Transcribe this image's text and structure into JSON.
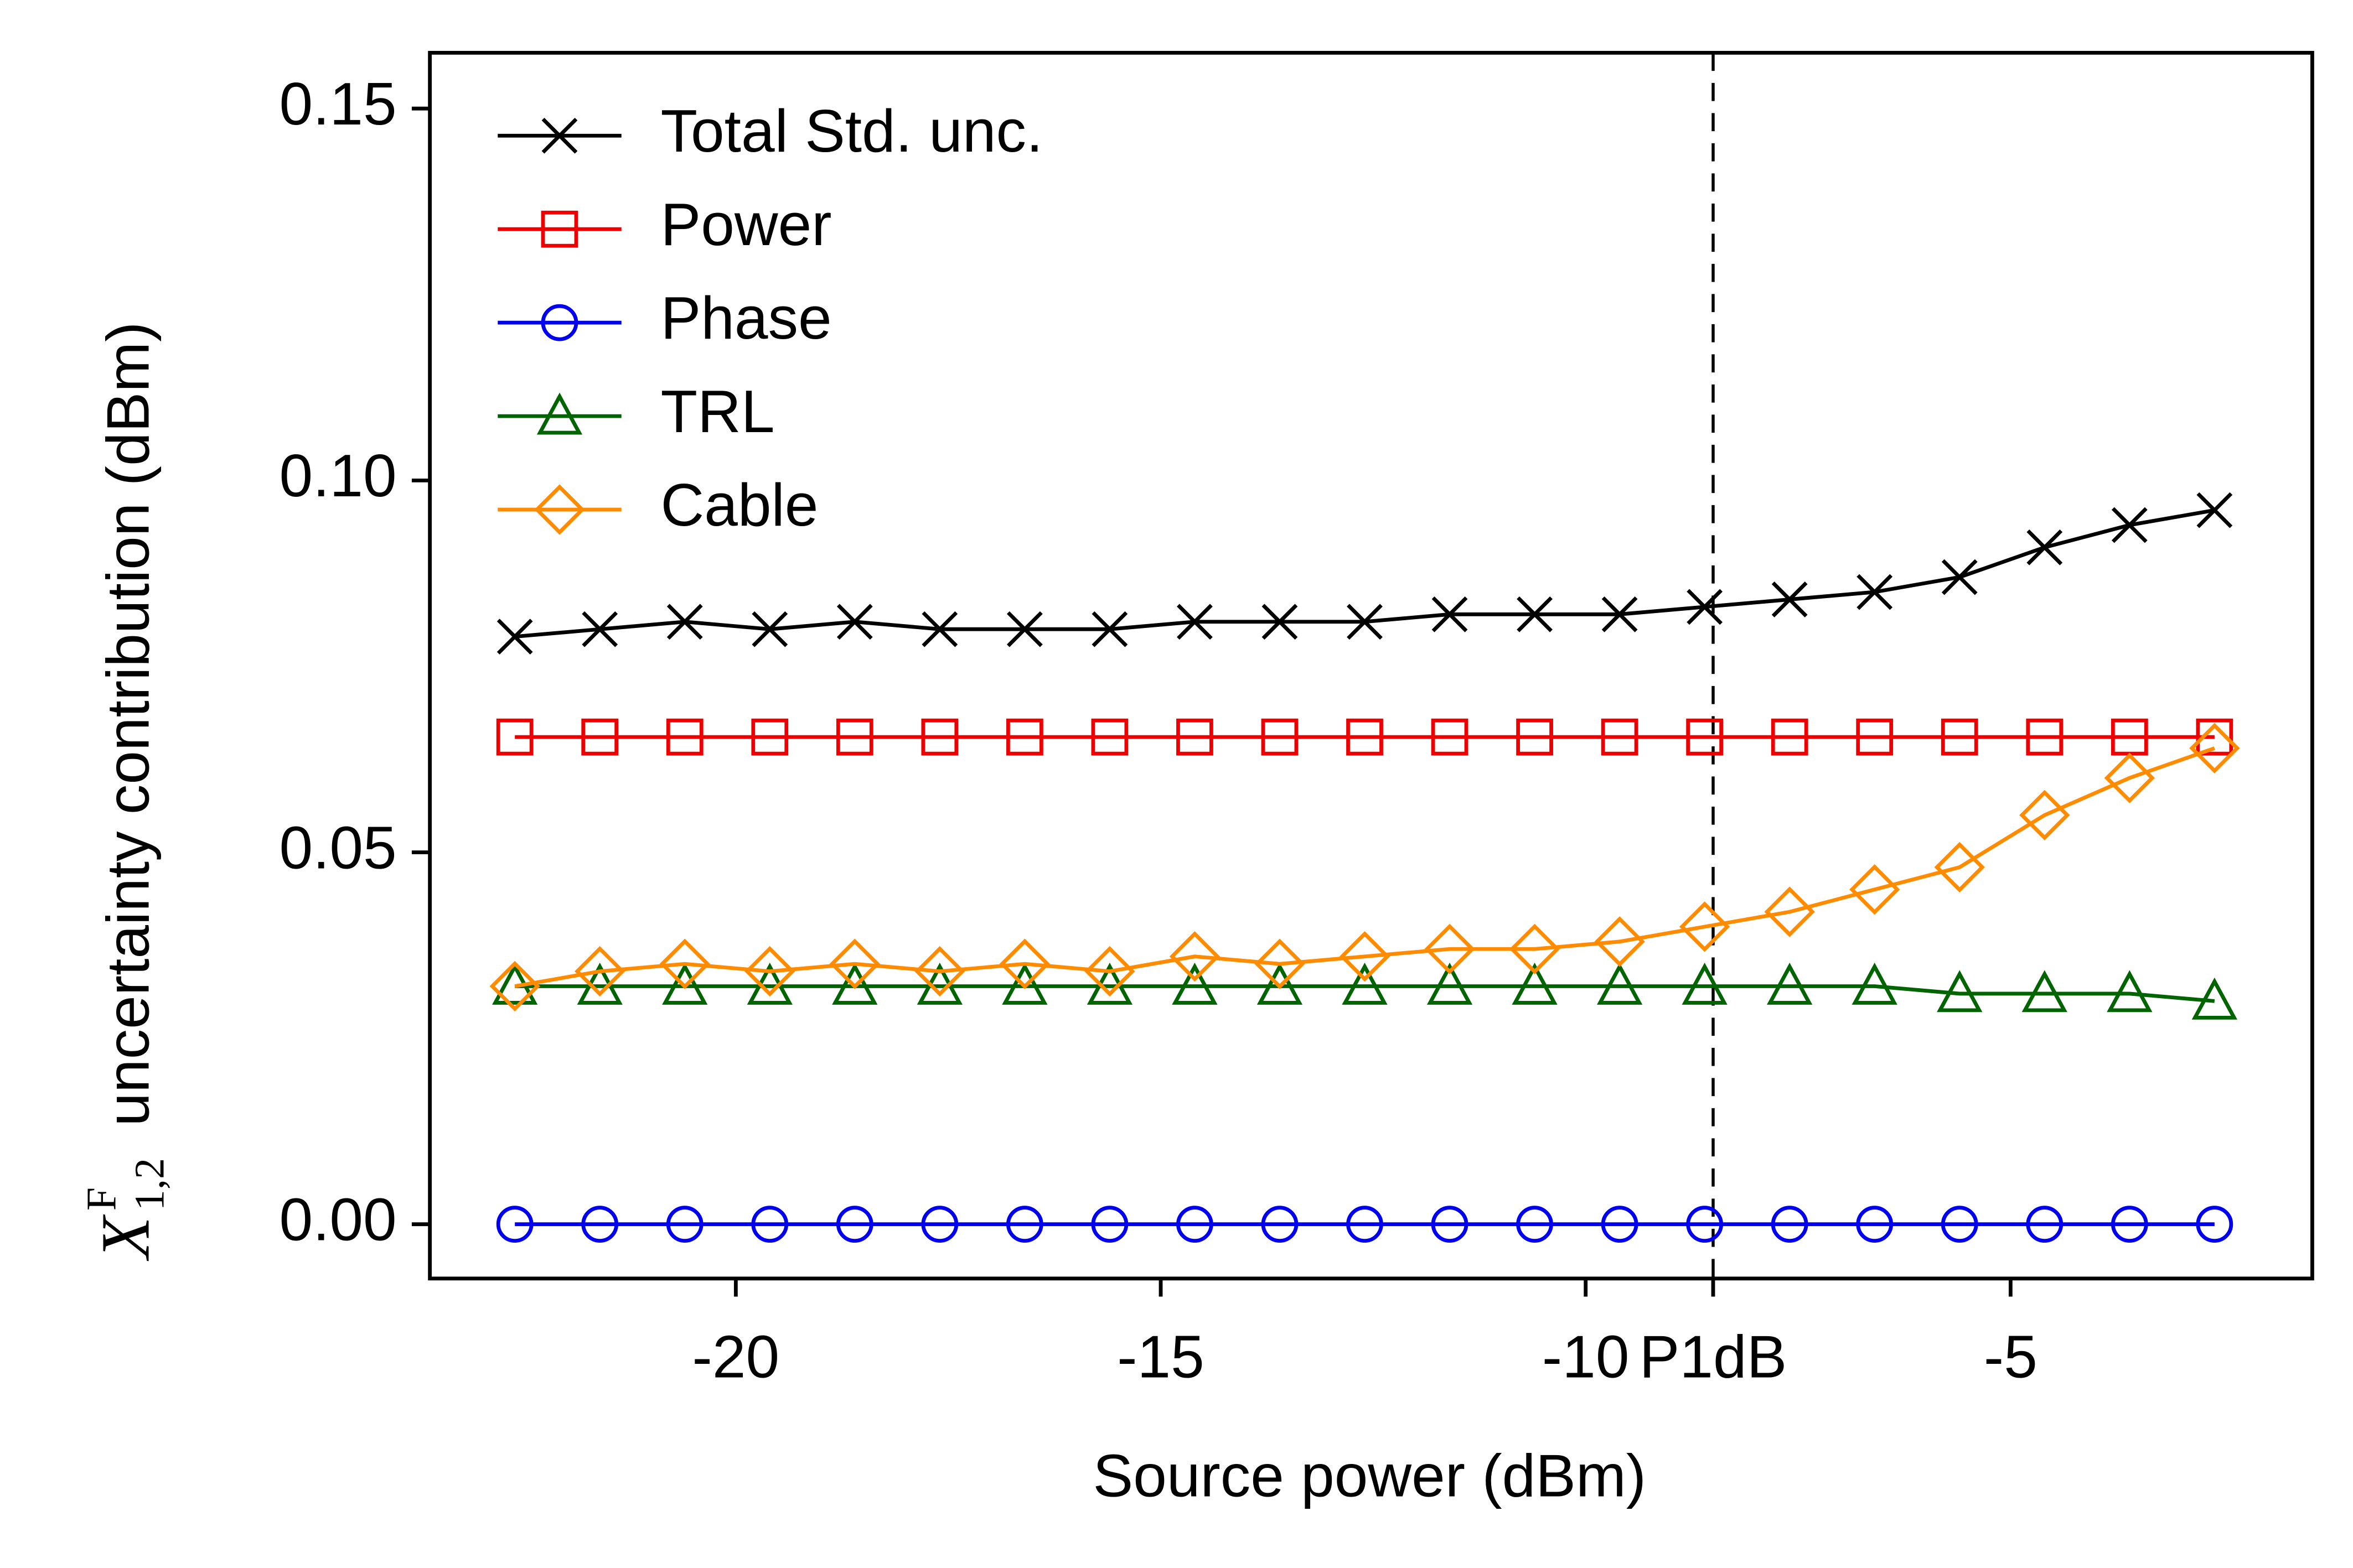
{
  "chart_data": {
    "type": "line",
    "xlabel": "Source power (dBm)",
    "ylabel": {
      "symbol": "X",
      "superscript": "F",
      "subscript": "1,2",
      "text": "uncertainty contribution (dBm)"
    },
    "x": [
      -22.6,
      -21.6,
      -20.6,
      -19.6,
      -18.6,
      -17.6,
      -16.6,
      -15.6,
      -14.6,
      -13.6,
      -12.6,
      -11.6,
      -10.6,
      -9.6,
      -8.6,
      -7.6,
      -6.6,
      -5.6,
      -4.6,
      -3.6,
      -2.6
    ],
    "series": [
      {
        "name": "Total Std. unc.",
        "color": "#000000",
        "marker": "x",
        "values": [
          0.079,
          0.08,
          0.081,
          0.08,
          0.081,
          0.08,
          0.08,
          0.08,
          0.081,
          0.081,
          0.081,
          0.082,
          0.082,
          0.082,
          0.083,
          0.084,
          0.085,
          0.087,
          0.091,
          0.094,
          0.096
        ]
      },
      {
        "name": "Power",
        "color": "#ee0000",
        "marker": "square",
        "values": [
          0.0655,
          0.0655,
          0.0655,
          0.0655,
          0.0655,
          0.0655,
          0.0655,
          0.0655,
          0.0655,
          0.0655,
          0.0655,
          0.0655,
          0.0655,
          0.0655,
          0.0655,
          0.0655,
          0.0655,
          0.0655,
          0.0655,
          0.0655,
          0.0655
        ]
      },
      {
        "name": "Phase",
        "color": "#0000ee",
        "marker": "circle",
        "values": [
          0,
          0,
          0,
          0,
          0,
          0,
          0,
          0,
          0,
          0,
          0,
          0,
          0,
          0,
          0,
          0,
          0,
          0,
          0,
          0,
          0
        ]
      },
      {
        "name": "TRL",
        "color": "#006400",
        "marker": "triangle",
        "values": [
          0.032,
          0.032,
          0.032,
          0.032,
          0.032,
          0.032,
          0.032,
          0.032,
          0.032,
          0.032,
          0.032,
          0.032,
          0.032,
          0.032,
          0.032,
          0.032,
          0.032,
          0.031,
          0.031,
          0.031,
          0.03
        ]
      },
      {
        "name": "Cable",
        "color": "#ff8c00",
        "marker": "diamond",
        "values": [
          0.032,
          0.034,
          0.035,
          0.034,
          0.035,
          0.034,
          0.035,
          0.034,
          0.036,
          0.035,
          0.036,
          0.037,
          0.037,
          0.038,
          0.04,
          0.042,
          0.045,
          0.048,
          0.055,
          0.06,
          0.064
        ]
      }
    ],
    "xlim": [
      -23.6,
      -1.45
    ],
    "ylim": [
      -0.0073,
      0.1575
    ],
    "xticks": [
      -20,
      -15,
      -10,
      {
        "value": -8.5,
        "label": "P1dB"
      },
      -5
    ],
    "yticks": [
      {
        "value": 0,
        "label": "0.00"
      },
      0.05,
      {
        "value": 0.1,
        "label": "0.10"
      },
      0.15
    ],
    "vlines": [
      -8.5
    ],
    "legend": "upper left",
    "grid": false
  }
}
